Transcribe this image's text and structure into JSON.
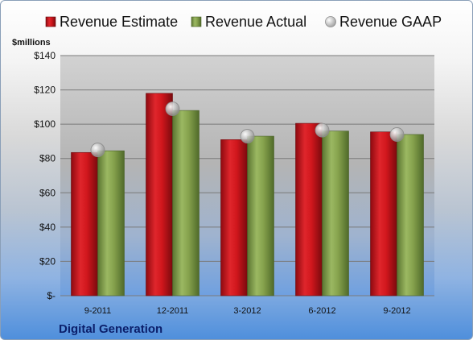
{
  "chart_data": {
    "type": "bar",
    "unit_label": "$millions",
    "categories": [
      "9-2011",
      "12-2011",
      "3-2012",
      "6-2012",
      "9-2012"
    ],
    "series": [
      {
        "name": "Revenue Estimate",
        "values": [
          83.5,
          118,
          91,
          100.5,
          95.5
        ],
        "color": "#c8141c",
        "mark": "bar"
      },
      {
        "name": "Revenue Actual",
        "values": [
          84.5,
          108,
          93,
          96,
          94
        ],
        "color": "#7c9b45",
        "mark": "bar"
      },
      {
        "name": "Revenue GAAP",
        "values": [
          85,
          109,
          93,
          96.5,
          94
        ],
        "color": "#a8a8a8",
        "mark": "dot"
      }
    ],
    "y_ticks": [
      "$-",
      "$20",
      "$40",
      "$60",
      "$80",
      "$100",
      "$120",
      "$140"
    ],
    "ylim": [
      0,
      140
    ],
    "grid": true,
    "legend_position": "top",
    "company": "Digital Generation"
  }
}
